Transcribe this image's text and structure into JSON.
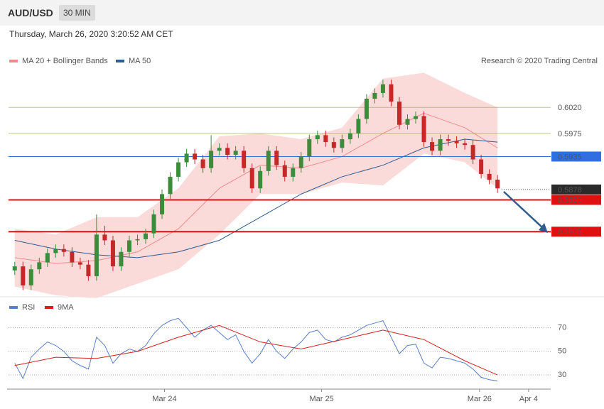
{
  "header": {
    "symbol": "AUD/USD",
    "interval": "30 MIN",
    "timestamp": "Thursday, March 26, 2020 3:20:52 AM CET"
  },
  "chart_data": [
    {
      "type": "candlestick",
      "source": "Research © 2020 Trading Central",
      "up_color": "#3c8c3c",
      "down_color": "#c62828",
      "xlim": [
        0,
        66
      ],
      "ylim": [
        0.5696,
        0.6083
      ],
      "open": [
        0.5738,
        0.5745,
        0.5712,
        0.574,
        0.5752,
        0.5768,
        0.5775,
        0.577,
        0.5752,
        0.5748,
        0.5728,
        0.58,
        0.579,
        0.5745,
        0.577,
        0.579,
        0.5792,
        0.5802,
        0.5835,
        0.587,
        0.59,
        0.5925,
        0.594,
        0.593,
        0.5915,
        0.5945,
        0.595,
        0.5938,
        0.5945,
        0.5915,
        0.588,
        0.591,
        0.5945,
        0.592,
        0.59,
        0.5915,
        0.5935,
        0.5965,
        0.5972,
        0.596,
        0.595,
        0.5965,
        0.5975,
        0.6,
        0.6035,
        0.6045,
        0.606,
        0.603,
        0.599,
        0.6,
        0.6005,
        0.596,
        0.5945,
        0.5965,
        0.5962,
        0.5958,
        0.5955,
        0.593,
        0.5905,
        0.5895
      ],
      "high": [
        0.5753,
        0.5753,
        0.5748,
        0.576,
        0.5776,
        0.5783,
        0.5783,
        0.5778,
        0.576,
        0.5756,
        0.5835,
        0.5815,
        0.5798,
        0.5778,
        0.5798,
        0.58,
        0.581,
        0.5843,
        0.5878,
        0.5908,
        0.5933,
        0.5948,
        0.5948,
        0.5938,
        0.5972,
        0.5958,
        0.5958,
        0.5953,
        0.5953,
        0.5923,
        0.5918,
        0.5953,
        0.5953,
        0.5928,
        0.5923,
        0.5943,
        0.5973,
        0.598,
        0.598,
        0.5968,
        0.5973,
        0.5983,
        0.6008,
        0.6043,
        0.6053,
        0.6068,
        0.6068,
        0.6038,
        0.6008,
        0.6013,
        0.6013,
        0.5968,
        0.5973,
        0.5973,
        0.597,
        0.5966,
        0.5963,
        0.5938,
        0.5913,
        0.5903
      ],
      "low": [
        0.573,
        0.5704,
        0.5704,
        0.5732,
        0.5744,
        0.576,
        0.5762,
        0.5744,
        0.574,
        0.572,
        0.572,
        0.5782,
        0.5737,
        0.5737,
        0.5762,
        0.5782,
        0.5784,
        0.5794,
        0.5827,
        0.5862,
        0.5892,
        0.5917,
        0.5922,
        0.5907,
        0.5907,
        0.5937,
        0.593,
        0.593,
        0.5907,
        0.5872,
        0.5872,
        0.5902,
        0.5912,
        0.5892,
        0.5892,
        0.5907,
        0.5927,
        0.5957,
        0.5952,
        0.5942,
        0.5942,
        0.5957,
        0.5967,
        0.5992,
        0.6027,
        0.6037,
        0.6022,
        0.5982,
        0.5982,
        0.5992,
        0.5952,
        0.5937,
        0.5937,
        0.5954,
        0.595,
        0.5947,
        0.5922,
        0.5897,
        0.5887,
        0.5872
      ],
      "close": [
        0.5745,
        0.5712,
        0.574,
        0.5752,
        0.5768,
        0.5775,
        0.577,
        0.5752,
        0.5748,
        0.5728,
        0.58,
        0.579,
        0.5745,
        0.577,
        0.579,
        0.5792,
        0.5802,
        0.5835,
        0.587,
        0.59,
        0.5925,
        0.594,
        0.593,
        0.5915,
        0.5945,
        0.595,
        0.5938,
        0.5945,
        0.5915,
        0.588,
        0.591,
        0.5945,
        0.592,
        0.59,
        0.5915,
        0.5935,
        0.5965,
        0.5972,
        0.596,
        0.595,
        0.5965,
        0.5975,
        0.6,
        0.6035,
        0.6045,
        0.606,
        0.603,
        0.599,
        0.6,
        0.6005,
        0.596,
        0.5945,
        0.5965,
        0.5962,
        0.5958,
        0.5955,
        0.593,
        0.5905,
        0.5895,
        0.588
      ],
      "overlays": [
        {
          "name": "MA 20 + Bollinger Bands",
          "color": "#f08a8a",
          "band_color": "#fbdada",
          "x": [
            0.5,
            5.5,
            10.5,
            15.5,
            20.5,
            25.5,
            30.5,
            35.5,
            40.5,
            45.5,
            50.5,
            55.5,
            59.5
          ],
          "values": [
            0.576,
            0.575,
            0.5755,
            0.577,
            0.581,
            0.588,
            0.592,
            0.5915,
            0.5935,
            0.5975,
            0.601,
            0.5985,
            0.595
          ],
          "upper": [
            0.581,
            0.58,
            0.583,
            0.583,
            0.588,
            0.597,
            0.5975,
            0.5965,
            0.5985,
            0.607,
            0.608,
            0.6045,
            0.602
          ],
          "lower": [
            0.571,
            0.5695,
            0.569,
            0.5715,
            0.574,
            0.58,
            0.587,
            0.587,
            0.589,
            0.5885,
            0.594,
            0.5925,
            0.588
          ]
        },
        {
          "name": "MA 50",
          "color": "#2f5d8c",
          "x": [
            0.5,
            5.5,
            10.5,
            15.5,
            20.5,
            25.5,
            30.5,
            35.5,
            40.5,
            45.5,
            50.5,
            55.5,
            59.5
          ],
          "values": [
            0.579,
            0.5775,
            0.5765,
            0.576,
            0.577,
            0.579,
            0.583,
            0.587,
            0.59,
            0.592,
            0.595,
            0.5965,
            0.596
          ]
        }
      ],
      "levels": [
        {
          "value": 0.602,
          "label": "0.6020",
          "color": "#8aab2e",
          "style": "text"
        },
        {
          "value": 0.5975,
          "label": "0.5975",
          "color": "#8aab2e",
          "style": "text"
        },
        {
          "value": 0.5935,
          "label": "0.5935",
          "color": "#2f6fe0",
          "style": "box"
        },
        {
          "value": 0.586,
          "label": "0.5860",
          "color": "#e01010",
          "style": "box"
        },
        {
          "value": 0.5805,
          "label": "0.5805",
          "color": "#e01010",
          "style": "box"
        }
      ],
      "last_price": {
        "value": 0.5878,
        "label": "0.5878",
        "color": "#2a2a2a"
      }
    },
    {
      "type": "line",
      "xlim": [
        0,
        66
      ],
      "ylim": [
        18,
        83
      ],
      "yticks": [
        30,
        50,
        70
      ],
      "xticks": [
        {
          "value": 18.8,
          "label": "Mar 24"
        },
        {
          "value": 38.0,
          "label": "Mar 25"
        },
        {
          "value": 57.3,
          "label": "Mar 26"
        },
        {
          "value": 63.3,
          "label": "Apr 4"
        }
      ],
      "series": [
        {
          "name": "RSI",
          "color": "#5b7fc4",
          "values": [
            40,
            27,
            45,
            52,
            58,
            55,
            50,
            42,
            38,
            35,
            62,
            55,
            40,
            48,
            52,
            50,
            55,
            65,
            72,
            76,
            78,
            70,
            62,
            68,
            72,
            66,
            60,
            64,
            50,
            40,
            48,
            60,
            50,
            44,
            52,
            58,
            66,
            68,
            60,
            58,
            62,
            64,
            68,
            72,
            74,
            76,
            62,
            48,
            55,
            56,
            40,
            36,
            45,
            44,
            42,
            40,
            35,
            28,
            26,
            25
          ]
        },
        {
          "name": "9MA",
          "color": "#d62020",
          "x": [
            0.5,
            5.5,
            10.5,
            15.5,
            20.5,
            25.5,
            30.5,
            35.5,
            40.5,
            45.5,
            50.5,
            55.5,
            59.5
          ],
          "values": [
            38,
            45,
            44,
            50,
            62,
            72,
            58,
            52,
            60,
            68,
            60,
            42,
            30
          ]
        }
      ]
    }
  ]
}
